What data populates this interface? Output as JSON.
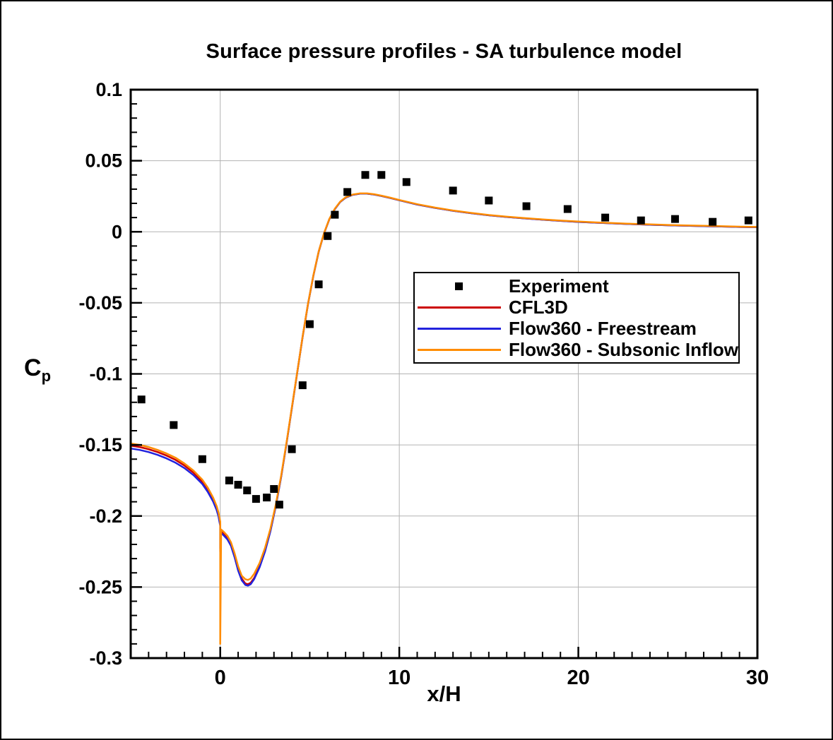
{
  "title": "Surface pressure profiles - SA turbulence model",
  "axes": {
    "xlabel": "x/H",
    "ylabel_base": "C",
    "ylabel_sub": "p"
  },
  "legend": {
    "items": [
      {
        "label": "Experiment",
        "sample": "marker",
        "color": "#000000"
      },
      {
        "label": "CFL3D",
        "sample": "line",
        "color": "#cc0000"
      },
      {
        "label": "Flow360 - Freestream",
        "sample": "line",
        "color": "#2222dd"
      },
      {
        "label": "Flow360 - Subsonic Inflow",
        "sample": "line",
        "color": "#ff8c00"
      }
    ]
  },
  "chart_data": {
    "type": "line",
    "title": "Surface pressure profiles - SA turbulence model",
    "xlabel": "x/H",
    "ylabel": "Cp",
    "xlim": [
      -5,
      30
    ],
    "ylim": [
      -0.3,
      0.1
    ],
    "grid": true,
    "grid_color": "#b3b3b3",
    "legend_position": "center-right",
    "x_ticks": [
      {
        "v": 0,
        "label": "0"
      },
      {
        "v": 10,
        "label": "10"
      },
      {
        "v": 20,
        "label": "20"
      },
      {
        "v": 30,
        "label": "30"
      }
    ],
    "y_ticks": [
      {
        "v": 0.1,
        "label": "0.1"
      },
      {
        "v": 0.05,
        "label": "0.05"
      },
      {
        "v": 0,
        "label": "0"
      },
      {
        "v": -0.05,
        "label": "-0.05"
      },
      {
        "v": -0.1,
        "label": "-0.1"
      },
      {
        "v": -0.15,
        "label": "-0.15"
      },
      {
        "v": -0.2,
        "label": "-0.2"
      },
      {
        "v": -0.25,
        "label": "-0.25"
      },
      {
        "v": -0.3,
        "label": "-0.3"
      }
    ],
    "x_minor_step": 1,
    "y_minor_step": 0.01,
    "series": [
      {
        "name": "Experiment",
        "type": "scatter",
        "marker": "square",
        "color": "#000000",
        "points": [
          [
            -4.4,
            -0.118
          ],
          [
            -2.6,
            -0.136
          ],
          [
            -1.0,
            -0.16
          ],
          [
            0.5,
            -0.175
          ],
          [
            1.0,
            -0.178
          ],
          [
            1.5,
            -0.182
          ],
          [
            2.0,
            -0.188
          ],
          [
            2.6,
            -0.187
          ],
          [
            3.0,
            -0.181
          ],
          [
            3.3,
            -0.192
          ],
          [
            4.0,
            -0.153
          ],
          [
            4.6,
            -0.108
          ],
          [
            5.0,
            -0.065
          ],
          [
            5.5,
            -0.037
          ],
          [
            6.0,
            -0.003
          ],
          [
            6.4,
            0.012
          ],
          [
            7.1,
            0.028
          ],
          [
            8.1,
            0.04
          ],
          [
            9.0,
            0.04
          ],
          [
            10.4,
            0.035
          ],
          [
            13.0,
            0.029
          ],
          [
            15.0,
            0.022
          ],
          [
            17.1,
            0.018
          ],
          [
            19.4,
            0.016
          ],
          [
            21.5,
            0.01
          ],
          [
            23.5,
            0.008
          ],
          [
            25.4,
            0.009
          ],
          [
            27.5,
            0.007
          ],
          [
            29.5,
            0.008
          ]
        ]
      },
      {
        "name": "CFL3D",
        "type": "line",
        "color": "#cc0000",
        "points": [
          [
            -5,
            -0.1505
          ],
          [
            -4.5,
            -0.1515
          ],
          [
            -4,
            -0.153
          ],
          [
            -3.5,
            -0.155
          ],
          [
            -3,
            -0.1575
          ],
          [
            -2.5,
            -0.1605
          ],
          [
            -2,
            -0.1645
          ],
          [
            -1.5,
            -0.1695
          ],
          [
            -1,
            -0.176
          ],
          [
            -0.7,
            -0.1815
          ],
          [
            -0.4,
            -0.1885
          ],
          [
            -0.2,
            -0.1945
          ],
          [
            -0.1,
            -0.199
          ],
          [
            0,
            -0.206
          ],
          [
            0,
            -0.225
          ],
          [
            0.05,
            -0.211
          ],
          [
            0.2,
            -0.2125
          ],
          [
            0.4,
            -0.215
          ],
          [
            0.6,
            -0.2195
          ],
          [
            0.8,
            -0.2275
          ],
          [
            1,
            -0.237
          ],
          [
            1.2,
            -0.244
          ],
          [
            1.4,
            -0.2475
          ],
          [
            1.55,
            -0.248
          ],
          [
            1.7,
            -0.247
          ],
          [
            1.9,
            -0.2435
          ],
          [
            2.2,
            -0.2355
          ],
          [
            2.5,
            -0.2245
          ],
          [
            2.8,
            -0.2105
          ],
          [
            3.1,
            -0.193
          ],
          [
            3.4,
            -0.1725
          ],
          [
            3.7,
            -0.149
          ],
          [
            4,
            -0.124
          ],
          [
            4.3,
            -0.099
          ],
          [
            4.6,
            -0.074
          ],
          [
            4.9,
            -0.051
          ],
          [
            5.2,
            -0.031
          ],
          [
            5.5,
            -0.014
          ],
          [
            5.8,
            -0.001
          ],
          [
            6.1,
            0.009
          ],
          [
            6.4,
            0.016
          ],
          [
            6.7,
            0.021
          ],
          [
            7,
            0.024
          ],
          [
            7.4,
            0.026
          ],
          [
            7.8,
            0.0268
          ],
          [
            8.2,
            0.0268
          ],
          [
            8.6,
            0.0262
          ],
          [
            9,
            0.0252
          ],
          [
            9.5,
            0.0238
          ],
          [
            10,
            0.0222
          ],
          [
            11,
            0.0192
          ],
          [
            12,
            0.0168
          ],
          [
            13,
            0.0148
          ],
          [
            14,
            0.0131
          ],
          [
            15,
            0.0116
          ],
          [
            16,
            0.0104
          ],
          [
            17,
            0.0094
          ],
          [
            18,
            0.0085
          ],
          [
            19,
            0.0077
          ],
          [
            20,
            0.007
          ],
          [
            21,
            0.0064
          ],
          [
            22,
            0.0059
          ],
          [
            23,
            0.0054
          ],
          [
            24,
            0.005
          ],
          [
            25,
            0.0046
          ],
          [
            26,
            0.0043
          ],
          [
            27,
            0.004
          ],
          [
            28,
            0.0037
          ],
          [
            29,
            0.0034
          ],
          [
            30,
            0.0032
          ]
        ]
      },
      {
        "name": "Flow360 - Freestream",
        "type": "line",
        "color": "#2222dd",
        "points": [
          [
            -5,
            -0.1525
          ],
          [
            -4.5,
            -0.1535
          ],
          [
            -4,
            -0.155
          ],
          [
            -3.5,
            -0.157
          ],
          [
            -3,
            -0.1595
          ],
          [
            -2.5,
            -0.1625
          ],
          [
            -2,
            -0.1663
          ],
          [
            -1.5,
            -0.1712
          ],
          [
            -1,
            -0.1775
          ],
          [
            -0.7,
            -0.183
          ],
          [
            -0.4,
            -0.1898
          ],
          [
            -0.2,
            -0.1958
          ],
          [
            -0.1,
            -0.2002
          ],
          [
            0,
            -0.207
          ],
          [
            0,
            -0.223
          ],
          [
            0.05,
            -0.212
          ],
          [
            0.2,
            -0.2138
          ],
          [
            0.4,
            -0.2165
          ],
          [
            0.6,
            -0.221
          ],
          [
            0.8,
            -0.229
          ],
          [
            1,
            -0.2385
          ],
          [
            1.2,
            -0.2452
          ],
          [
            1.4,
            -0.2485
          ],
          [
            1.55,
            -0.249
          ],
          [
            1.7,
            -0.248
          ],
          [
            1.9,
            -0.2443
          ],
          [
            2.2,
            -0.236
          ],
          [
            2.5,
            -0.225
          ],
          [
            2.8,
            -0.2108
          ],
          [
            3.1,
            -0.1932
          ],
          [
            3.4,
            -0.1726
          ],
          [
            3.7,
            -0.149
          ],
          [
            4,
            -0.124
          ],
          [
            4.3,
            -0.099
          ],
          [
            4.6,
            -0.074
          ],
          [
            4.9,
            -0.051
          ],
          [
            5.2,
            -0.031
          ],
          [
            5.5,
            -0.014
          ],
          [
            5.8,
            -0.001
          ],
          [
            6.1,
            0.009
          ],
          [
            6.4,
            0.016
          ],
          [
            6.7,
            0.021
          ],
          [
            7,
            0.024
          ],
          [
            7.4,
            0.026
          ],
          [
            7.8,
            0.0268
          ],
          [
            8.2,
            0.0268
          ],
          [
            8.6,
            0.0262
          ],
          [
            9,
            0.0252
          ],
          [
            9.5,
            0.0238
          ],
          [
            10,
            0.0222
          ],
          [
            11,
            0.0192
          ],
          [
            12,
            0.0168
          ],
          [
            13,
            0.0148
          ],
          [
            14,
            0.0131
          ],
          [
            15,
            0.0116
          ],
          [
            16,
            0.0104
          ],
          [
            17,
            0.0094
          ],
          [
            18,
            0.0085
          ],
          [
            19,
            0.0077
          ],
          [
            20,
            0.007
          ],
          [
            21,
            0.0064
          ],
          [
            22,
            0.0059
          ],
          [
            23,
            0.0054
          ],
          [
            24,
            0.005
          ],
          [
            25,
            0.0046
          ],
          [
            26,
            0.0043
          ],
          [
            27,
            0.004
          ],
          [
            28,
            0.0037
          ],
          [
            29,
            0.0034
          ],
          [
            30,
            0.0032
          ]
        ]
      },
      {
        "name": "Flow360 - Subsonic Inflow",
        "type": "line",
        "color": "#ff8c00",
        "points": [
          [
            -5,
            -0.149
          ],
          [
            -4.5,
            -0.15
          ],
          [
            -4,
            -0.1515
          ],
          [
            -3.5,
            -0.1535
          ],
          [
            -3,
            -0.156
          ],
          [
            -2.5,
            -0.159
          ],
          [
            -2,
            -0.163
          ],
          [
            -1.5,
            -0.168
          ],
          [
            -1,
            -0.1745
          ],
          [
            -0.7,
            -0.18
          ],
          [
            -0.4,
            -0.187
          ],
          [
            -0.2,
            -0.193
          ],
          [
            -0.1,
            -0.1975
          ],
          [
            0,
            -0.204
          ],
          [
            0,
            -0.29
          ],
          [
            0.05,
            -0.2095
          ],
          [
            0.2,
            -0.2112
          ],
          [
            0.4,
            -0.214
          ],
          [
            0.6,
            -0.2185
          ],
          [
            0.8,
            -0.2262
          ],
          [
            1,
            -0.2355
          ],
          [
            1.2,
            -0.242
          ],
          [
            1.4,
            -0.2445
          ],
          [
            1.55,
            -0.245
          ],
          [
            1.7,
            -0.244
          ],
          [
            1.9,
            -0.2405
          ],
          [
            2.2,
            -0.233
          ],
          [
            2.5,
            -0.2225
          ],
          [
            2.8,
            -0.209
          ],
          [
            3.1,
            -0.192
          ],
          [
            3.4,
            -0.1718
          ],
          [
            3.7,
            -0.1484
          ],
          [
            4,
            -0.1236
          ],
          [
            4.3,
            -0.0988
          ],
          [
            4.6,
            -0.0738
          ],
          [
            4.9,
            -0.0508
          ],
          [
            5.2,
            -0.0308
          ],
          [
            5.5,
            -0.0138
          ],
          [
            5.8,
            -0.0008
          ],
          [
            6.1,
            0.0092
          ],
          [
            6.4,
            0.0162
          ],
          [
            6.7,
            0.0212
          ],
          [
            7,
            0.0242
          ],
          [
            7.4,
            0.0262
          ],
          [
            7.8,
            0.027
          ],
          [
            8.2,
            0.027
          ],
          [
            8.6,
            0.0264
          ],
          [
            9,
            0.0254
          ],
          [
            9.5,
            0.024
          ],
          [
            10,
            0.0224
          ],
          [
            11,
            0.0194
          ],
          [
            12,
            0.017
          ],
          [
            13,
            0.015
          ],
          [
            14,
            0.0133
          ],
          [
            15,
            0.0118
          ],
          [
            16,
            0.0106
          ],
          [
            17,
            0.0096
          ],
          [
            18,
            0.0087
          ],
          [
            19,
            0.0079
          ],
          [
            20,
            0.0072
          ],
          [
            21,
            0.0066
          ],
          [
            22,
            0.0061
          ],
          [
            23,
            0.0056
          ],
          [
            24,
            0.0052
          ],
          [
            25,
            0.0048
          ],
          [
            26,
            0.0045
          ],
          [
            27,
            0.0042
          ],
          [
            28,
            0.0039
          ],
          [
            29,
            0.0036
          ],
          [
            30,
            0.0034
          ]
        ]
      }
    ]
  }
}
